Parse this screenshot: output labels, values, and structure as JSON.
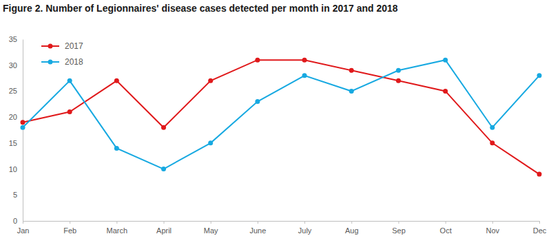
{
  "chart_data": {
    "type": "line",
    "title": "Figure 2. Number of Legionnaires' disease cases detected per month in 2017 and 2018",
    "categories": [
      "Jan",
      "Feb",
      "March",
      "April",
      "May",
      "June",
      "July",
      "Aug",
      "Sep",
      "Oct",
      "Nov",
      "Dec"
    ],
    "series": [
      {
        "name": "2017",
        "color": "#e0191b",
        "marker": "circle",
        "values": [
          19,
          21,
          27,
          18,
          27,
          31,
          31,
          29,
          27,
          25,
          15,
          9
        ]
      },
      {
        "name": "2018",
        "color": "#17a9e1",
        "marker": "circle",
        "values": [
          18,
          27,
          14,
          10,
          15,
          23,
          28,
          25,
          29,
          31,
          18,
          28
        ]
      }
    ],
    "ylim": [
      0,
      35
    ],
    "yticks": [
      0,
      5,
      10,
      15,
      20,
      25,
      30,
      35
    ],
    "grid": false,
    "legend": "top-left"
  }
}
